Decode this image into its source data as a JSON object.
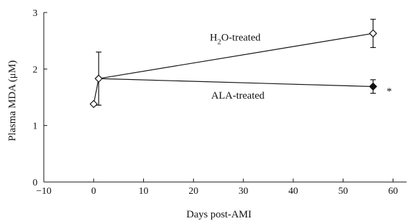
{
  "chart_data": {
    "type": "line",
    "xlabel": "Days post-AMI",
    "ylabel": "Plasma MDA (μM)",
    "xlim": [
      -10,
      63
    ],
    "ylim": [
      0,
      3
    ],
    "xticks": [
      -10,
      0,
      10,
      20,
      30,
      40,
      50,
      60
    ],
    "yticks": [
      0,
      1,
      2,
      3
    ],
    "x_tick_labels": [
      "−10",
      "0",
      "10",
      "20",
      "30",
      "40",
      "50",
      "60"
    ],
    "y_tick_labels": [
      "0",
      "1",
      "2",
      "3"
    ],
    "series": [
      {
        "name": "H2O-treated",
        "marker": "open-diamond",
        "x": [
          0,
          1,
          56
        ],
        "y": [
          1.38,
          1.83,
          2.63
        ],
        "error": [
          0,
          0.47,
          0.25
        ],
        "error_dir": [
          "none",
          "both",
          "both"
        ]
      },
      {
        "name": "ALA-treated",
        "marker": "open-diamond-then-filled",
        "x": [
          1,
          56
        ],
        "y": [
          1.83,
          1.69
        ],
        "error": [
          0,
          0.12
        ],
        "error_dir": [
          "none",
          "both"
        ],
        "filled": [
          false,
          true
        ]
      }
    ],
    "baseline_point": {
      "x": 0,
      "y": 1.38,
      "error_up": 0
    },
    "annotations": [
      {
        "label_main": "H",
        "label_sub": "2",
        "label_rest": "O-treated",
        "x": 40,
        "y": 2.6
      },
      {
        "label": "ALA-treated",
        "x": 40,
        "y": 1.5
      },
      {
        "label": "*",
        "x": 59,
        "y": 1.65
      }
    ],
    "colors": {
      "line": "#111111",
      "fill_open": "#ffffff",
      "fill_solid": "#111111"
    }
  }
}
